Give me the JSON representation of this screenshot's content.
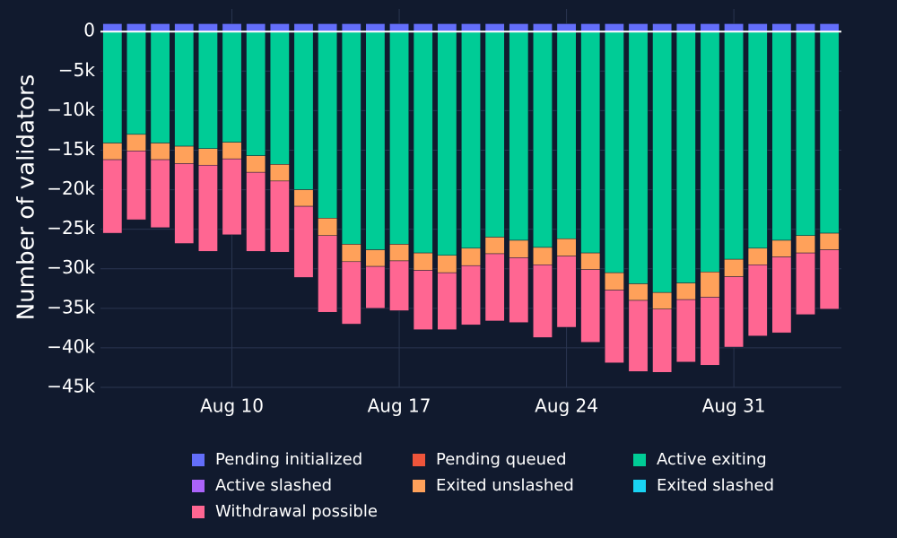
{
  "chart_data": {
    "type": "bar",
    "stacked": true,
    "ylabel": "Number of validators",
    "xlabel": "",
    "ylim": [
      -45000,
      1500
    ],
    "y_ticks": [
      0,
      -5000,
      -10000,
      -15000,
      -20000,
      -25000,
      -30000,
      -35000,
      -40000,
      -45000
    ],
    "y_tick_labels": [
      "0",
      "−5k",
      "−10k",
      "−15k",
      "−20k",
      "−25k",
      "−30k",
      "−35k",
      "−40k",
      "−45k"
    ],
    "x_tick_labels": [
      "Aug 10",
      "Aug 17",
      "Aug 24",
      "Aug 31"
    ],
    "x_tick_dates": [
      "2023-08-10",
      "2023-08-17",
      "2023-08-24",
      "2023-08-31"
    ],
    "grid": true,
    "legend_position": "bottom",
    "categories": [
      "2023-08-05",
      "2023-08-06",
      "2023-08-07",
      "2023-08-08",
      "2023-08-09",
      "2023-08-10",
      "2023-08-11",
      "2023-08-12",
      "2023-08-13",
      "2023-08-14",
      "2023-08-15",
      "2023-08-16",
      "2023-08-17",
      "2023-08-18",
      "2023-08-19",
      "2023-08-20",
      "2023-08-21",
      "2023-08-22",
      "2023-08-23",
      "2023-08-24",
      "2023-08-25",
      "2023-08-26",
      "2023-08-27",
      "2023-08-28",
      "2023-08-29",
      "2023-08-30",
      "2023-08-31",
      "2023-09-01",
      "2023-09-02",
      "2023-09-03",
      "2023-09-04"
    ],
    "series": [
      {
        "name": "Pending initialized",
        "color": "#636efa",
        "values": [
          1000,
          1000,
          1000,
          1000,
          1000,
          1000,
          1000,
          1000,
          1000,
          1000,
          1000,
          1000,
          1000,
          1000,
          1000,
          1000,
          1000,
          1000,
          1000,
          1000,
          1000,
          1000,
          1000,
          1000,
          1000,
          1000,
          1000,
          1000,
          1000,
          1000,
          1000
        ]
      },
      {
        "name": "Pending queued",
        "color": "#ef553b",
        "values": [
          0,
          0,
          0,
          0,
          0,
          0,
          0,
          0,
          0,
          0,
          0,
          0,
          0,
          0,
          0,
          0,
          0,
          0,
          0,
          0,
          0,
          0,
          0,
          0,
          0,
          0,
          0,
          0,
          0,
          0,
          0
        ]
      },
      {
        "name": "Active exiting",
        "color": "#00cc96",
        "values": [
          -14100,
          -13000,
          -14100,
          -14500,
          -14800,
          -14000,
          -15700,
          -16800,
          -20000,
          -23600,
          -26900,
          -27600,
          -26900,
          -28000,
          -28300,
          -27400,
          -26000,
          -26400,
          -27300,
          -26200,
          -28000,
          -30500,
          -31900,
          -33000,
          -31800,
          -30400,
          -28800,
          -27400,
          -26400,
          -25800,
          -25500
        ]
      },
      {
        "name": "Active slashed",
        "color": "#ab63fa",
        "values": [
          0,
          0,
          0,
          0,
          0,
          0,
          0,
          0,
          0,
          0,
          0,
          0,
          0,
          0,
          0,
          0,
          0,
          0,
          0,
          0,
          0,
          0,
          0,
          0,
          0,
          0,
          0,
          0,
          0,
          0,
          0
        ]
      },
      {
        "name": "Exited unslashed",
        "color": "#ffa15a",
        "values": [
          -2100,
          -2100,
          -2100,
          -2200,
          -2100,
          -2100,
          -2100,
          -2100,
          -2100,
          -2200,
          -2200,
          -2100,
          -2100,
          -2200,
          -2200,
          -2200,
          -2100,
          -2200,
          -2200,
          -2200,
          -2100,
          -2200,
          -2100,
          -2100,
          -2100,
          -3200,
          -2200,
          -2100,
          -2100,
          -2200,
          -2100
        ]
      },
      {
        "name": "Exited slashed",
        "color": "#19d3f3",
        "values": [
          0,
          0,
          0,
          0,
          0,
          0,
          0,
          0,
          0,
          0,
          0,
          0,
          0,
          0,
          0,
          0,
          0,
          0,
          0,
          0,
          0,
          0,
          0,
          0,
          0,
          0,
          0,
          0,
          0,
          0,
          0
        ]
      },
      {
        "name": "Withdrawal possible",
        "color": "#ff6692",
        "values": [
          -9300,
          -8700,
          -8600,
          -10100,
          -10900,
          -9600,
          -10000,
          -9000,
          -9000,
          -9700,
          -7900,
          -5300,
          -6300,
          -7500,
          -7200,
          -7500,
          -8500,
          -8200,
          -9200,
          -9000,
          -9200,
          -9200,
          -9000,
          -8000,
          -7900,
          -8600,
          -8900,
          -9000,
          -9600,
          -7800,
          -7500
        ]
      }
    ]
  }
}
